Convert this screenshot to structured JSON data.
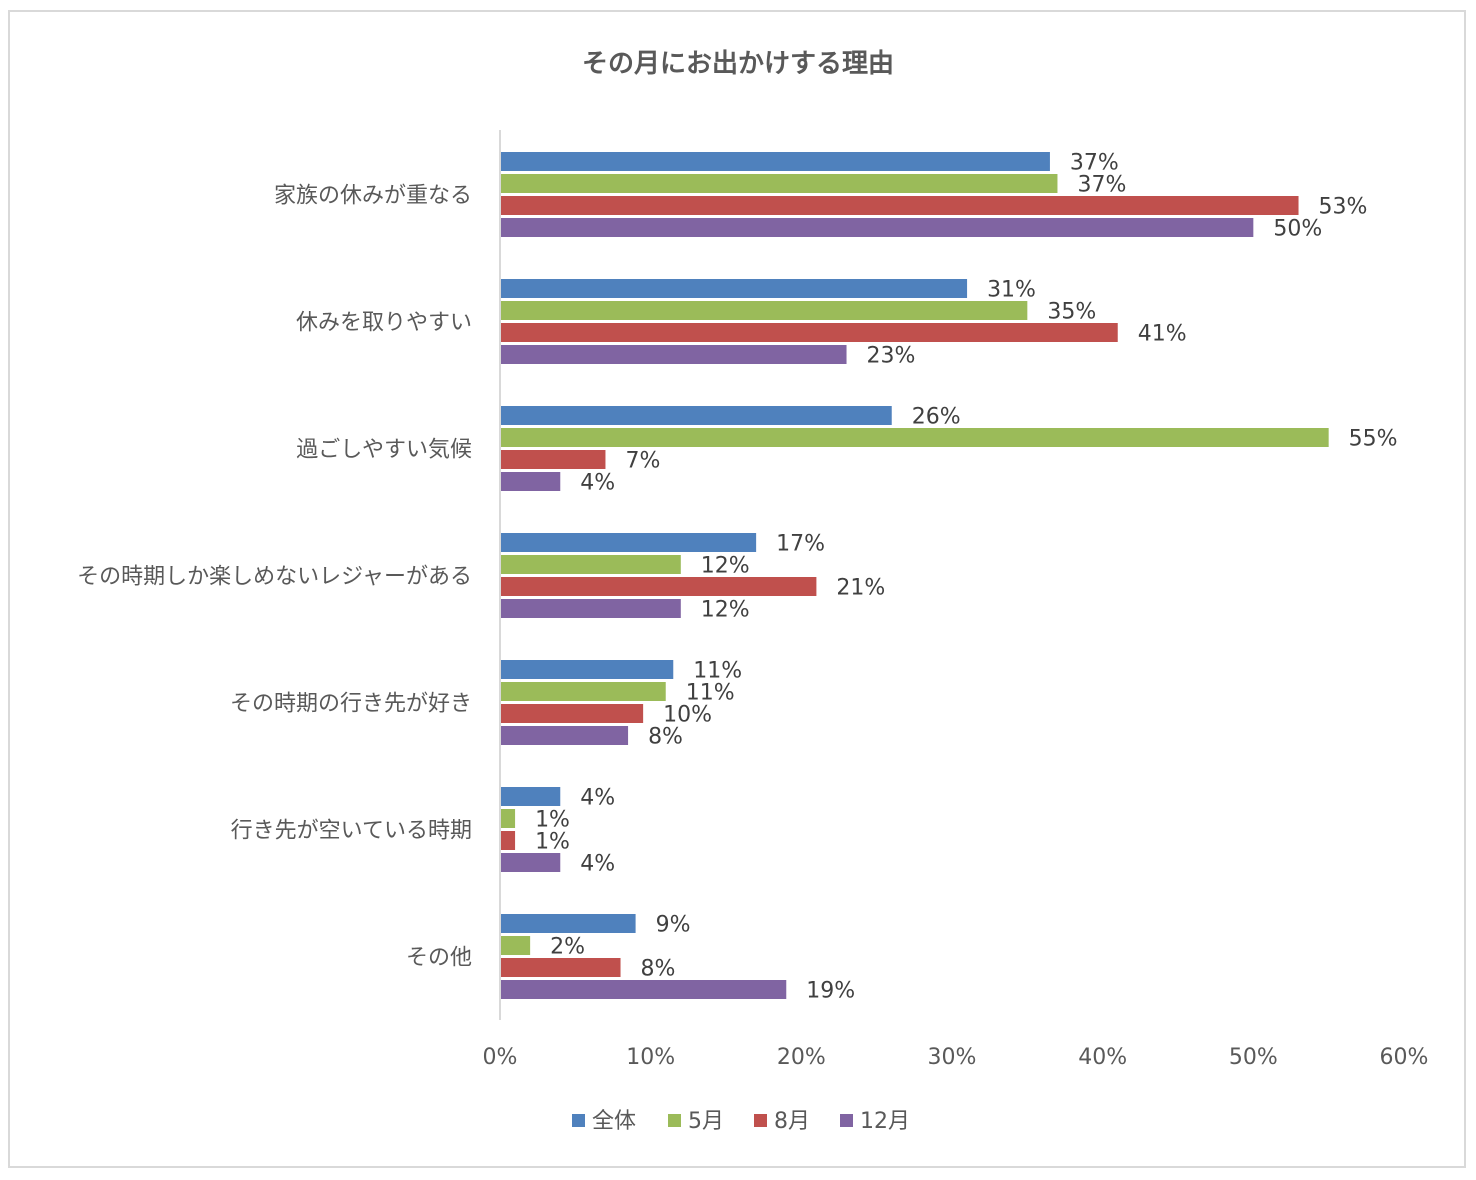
{
  "chart_data": {
    "type": "bar",
    "orientation": "horizontal",
    "title": "その月にお出かけする理由",
    "categories": [
      "家族の休みが重なる",
      "休みを取りやすい",
      "過ごしやすい気候",
      "その時期しか楽しめないレジャーがある",
      "その時期の行き先が好き",
      "行き先が空いている時期",
      "その他"
    ],
    "series": [
      {
        "name": "全体",
        "color": "#4f81bd",
        "values": [
          0.365,
          0.31,
          0.26,
          0.17,
          0.115,
          0.04,
          0.09
        ],
        "labels": [
          "37%",
          "31%",
          "26%",
          "17%",
          "11%",
          "4%",
          "9%"
        ]
      },
      {
        "name": "5月",
        "color": "#9bbb59",
        "values": [
          0.37,
          0.35,
          0.55,
          0.12,
          0.11,
          0.01,
          0.02
        ],
        "labels": [
          "37%",
          "35%",
          "55%",
          "12%",
          "11%",
          "1%",
          "2%"
        ]
      },
      {
        "name": "8月",
        "color": "#c0504d",
        "values": [
          0.53,
          0.41,
          0.07,
          0.21,
          0.095,
          0.01,
          0.08
        ],
        "labels": [
          "53%",
          "41%",
          "7%",
          "21%",
          "10%",
          "1%",
          "8%"
        ]
      },
      {
        "name": "12月",
        "color": "#8064a2",
        "values": [
          0.5,
          0.23,
          0.04,
          0.12,
          0.085,
          0.04,
          0.19
        ],
        "labels": [
          "50%",
          "23%",
          "4%",
          "12%",
          "8%",
          "4%",
          "19%"
        ]
      }
    ],
    "xlim": [
      0,
      0.6
    ],
    "xticks": [
      {
        "value": 0,
        "label": "0%"
      },
      {
        "value": 0.1,
        "label": "10%"
      },
      {
        "value": 0.2,
        "label": "20%"
      },
      {
        "value": 0.3,
        "label": "30%"
      },
      {
        "value": 0.4,
        "label": "40%"
      },
      {
        "value": 0.5,
        "label": "50%"
      },
      {
        "value": 0.6,
        "label": "60%"
      }
    ],
    "xlabel": "",
    "ylabel": "",
    "grid": false,
    "legend_position": "bottom",
    "axis_color": "#d9d9d9"
  }
}
